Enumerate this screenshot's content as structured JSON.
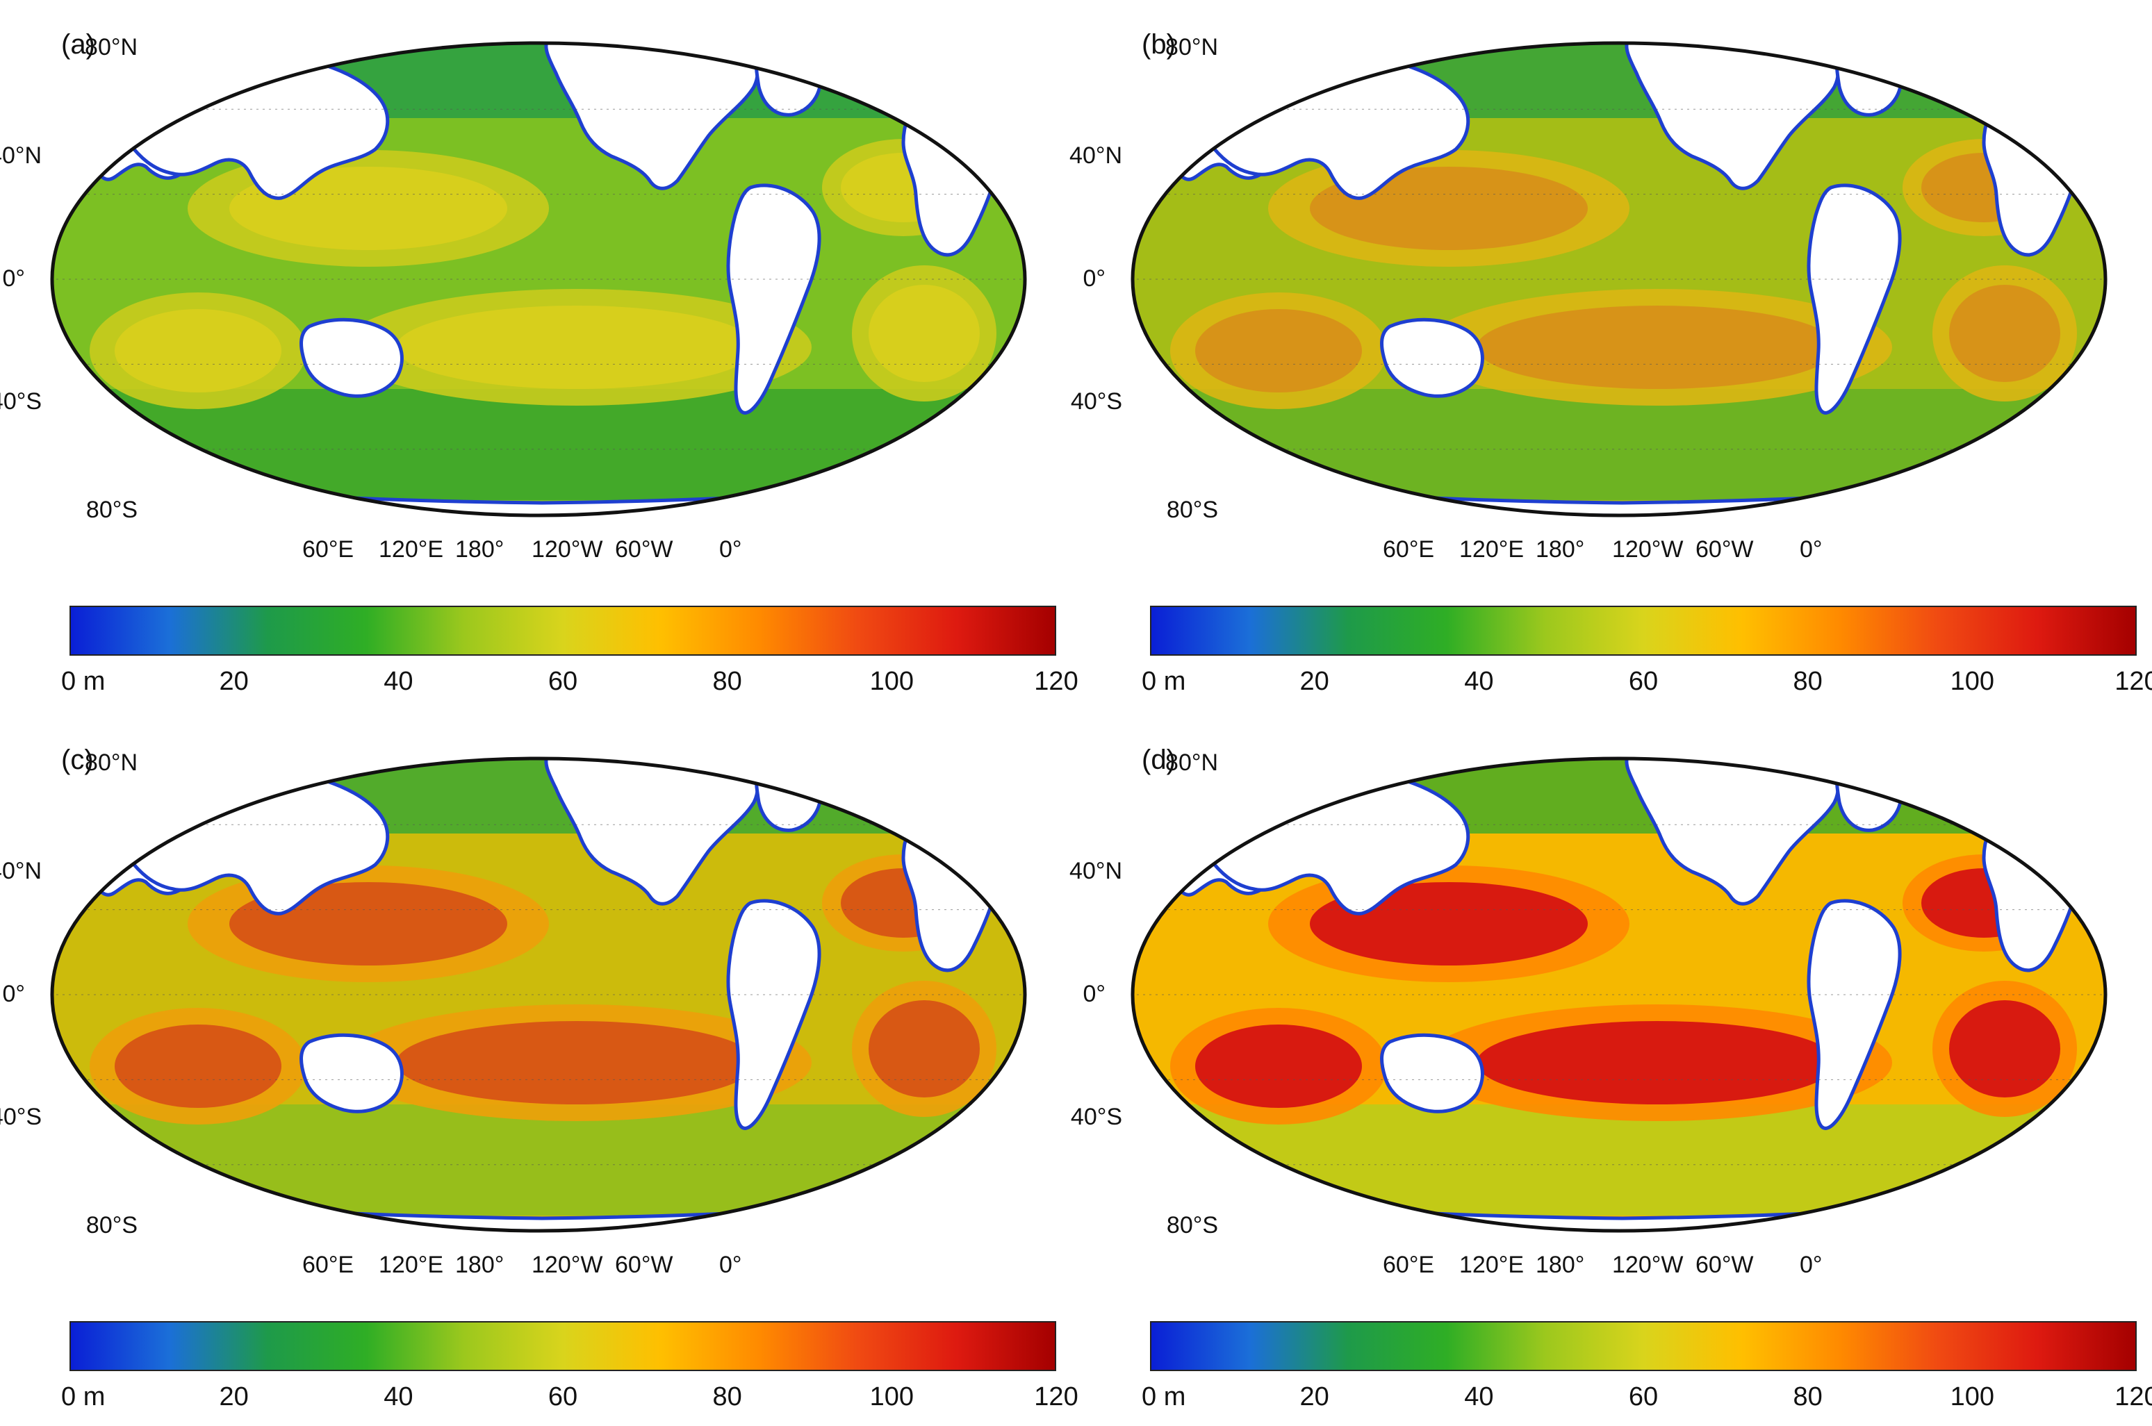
{
  "colorbar": {
    "ticks": [
      "0 m",
      "20",
      "40",
      "60",
      "80",
      "100",
      "120"
    ],
    "range": [
      0,
      120
    ],
    "colors": [
      "#0a1fd6",
      "#1b6fd8",
      "#1e9a4a",
      "#2fae25",
      "#9cc81d",
      "#d9d41c",
      "#ffbf00",
      "#ff8a00",
      "#f04a12",
      "#de1a10",
      "#a40000"
    ]
  },
  "latitude_labels": [
    "80°N",
    "40°N",
    "0°",
    "40°S",
    "80°S"
  ],
  "longitude_labels": [
    "60°E",
    "120°E",
    "180°",
    "120°W",
    "60°W",
    "0°"
  ],
  "panels": [
    {
      "label": "(a)",
      "intensity": 0.0
    },
    {
      "label": "(b)",
      "intensity": 0.33
    },
    {
      "label": "(c)",
      "intensity": 0.66
    },
    {
      "label": "(d)",
      "intensity": 1.0
    }
  ]
}
